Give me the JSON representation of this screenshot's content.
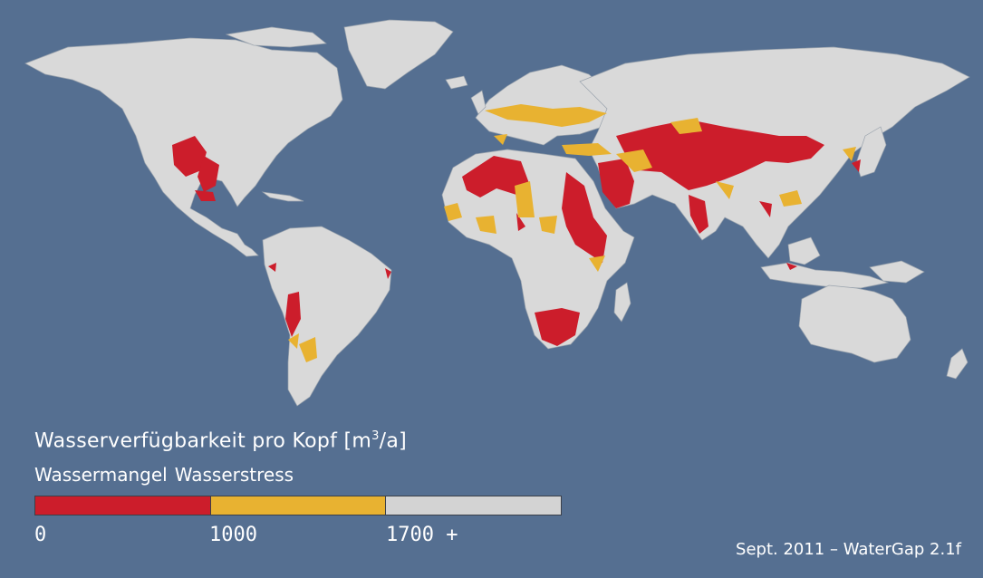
{
  "legend": {
    "title_prefix": "Wasserverfügbarkeit pro Kopf [m",
    "title_sup": "3",
    "title_suffix": "/a]",
    "category_scarcity": "Wassermangel",
    "category_stress": "Wasserstress",
    "ticks": [
      "0",
      "1000",
      "1700 +"
    ],
    "colors": {
      "scarcity": "#cc1d2b",
      "stress": "#e8b231",
      "sufficient": "#d3d3d3"
    }
  },
  "credit": "Sept. 2011 – WaterGap 2.1f",
  "map_colors": {
    "ocean": "#556f91",
    "land": "#d9d9d9"
  }
}
